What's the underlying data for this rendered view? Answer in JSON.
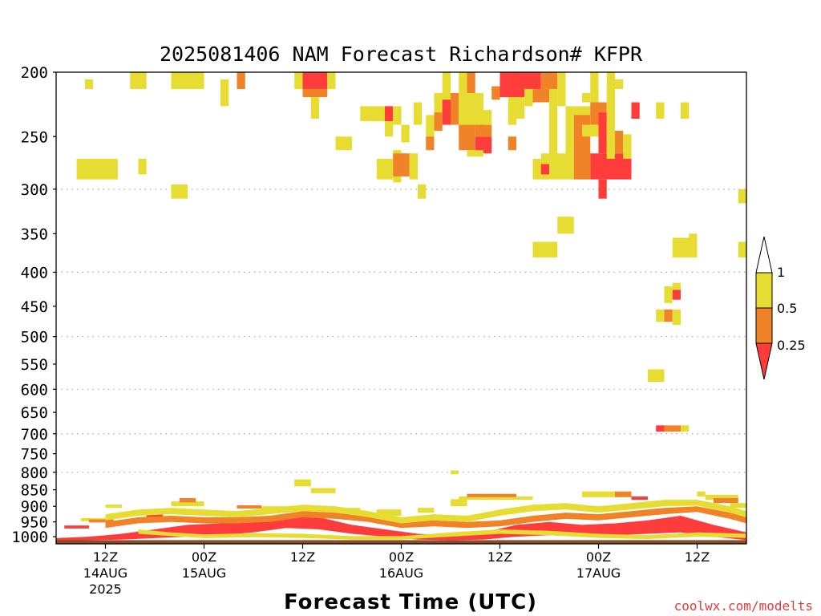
{
  "chart_data": {
    "type": "heatmap",
    "title": "2025081406 NAM Forecast Richardson# KFPR",
    "xlabel": "Forecast Time (UTC)",
    "ylabel": "",
    "credit": "coolwx.com/modelts",
    "x_ticks": [
      {
        "hour": 6,
        "lines": [
          "12Z",
          "14AUG",
          "2025"
        ]
      },
      {
        "hour": 18,
        "lines": [
          "00Z",
          "15AUG"
        ]
      },
      {
        "hour": 30,
        "lines": [
          "12Z"
        ]
      },
      {
        "hour": 42,
        "lines": [
          "00Z",
          "16AUG"
        ]
      },
      {
        "hour": 54,
        "lines": [
          "12Z"
        ]
      },
      {
        "hour": 66,
        "lines": [
          "00Z",
          "17AUG"
        ]
      },
      {
        "hour": 78,
        "lines": [
          "12Z"
        ]
      }
    ],
    "xlim": [
      0,
      84
    ],
    "ylim": [
      1025,
      200
    ],
    "y_scale": "log",
    "y_ticks": [
      200,
      250,
      300,
      350,
      400,
      450,
      500,
      550,
      600,
      650,
      700,
      750,
      800,
      850,
      900,
      950,
      1000
    ],
    "gridlines_hpa": [
      300,
      400,
      500,
      600,
      700,
      800
    ],
    "surface_hpa": 1012,
    "colorbar": {
      "labels": [
        "1",
        "0.5",
        "0.25"
      ],
      "bins": [
        {
          "range": "<0.25",
          "color": "#ff3c3c"
        },
        {
          "range": "0.25-0.5",
          "color": "#f08228"
        },
        {
          "range": "0.5-1",
          "color": "#e6dc32"
        },
        {
          "range": ">1",
          "color": "#ffffff"
        }
      ]
    },
    "colors": {
      "red": "#ff3c3c",
      "orange": "#f08228",
      "yellow": "#e6dc32",
      "surface": "#8c4a28",
      "grid": "#aaaaaa"
    },
    "cells": [
      [
        "y",
        3.5,
        4.5,
        205,
        212
      ],
      [
        "y",
        9,
        11,
        200,
        212
      ],
      [
        "y",
        14,
        18,
        200,
        212
      ],
      [
        "y",
        20,
        21,
        205,
        225
      ],
      [
        "o",
        22,
        23,
        200,
        212
      ],
      [
        "y",
        29,
        30,
        200,
        212
      ],
      [
        "r",
        30,
        33,
        200,
        212
      ],
      [
        "y",
        33,
        34,
        200,
        212
      ],
      [
        "o",
        30,
        33,
        212,
        218
      ],
      [
        "y",
        31,
        32,
        218,
        235
      ],
      [
        "y",
        2.5,
        7.5,
        270,
        290
      ],
      [
        "y",
        10,
        11,
        270,
        285
      ],
      [
        "y",
        14,
        16,
        295,
        310
      ],
      [
        "y",
        34,
        36,
        250,
        262
      ],
      [
        "y",
        37,
        40,
        225,
        237
      ],
      [
        "r",
        40,
        41,
        225,
        237
      ],
      [
        "y",
        41,
        42,
        225,
        240
      ],
      [
        "y",
        40,
        41,
        237,
        250
      ],
      [
        "y",
        42,
        43,
        240,
        255
      ],
      [
        "y",
        41,
        42,
        262,
        280
      ],
      [
        "y",
        39,
        41,
        270,
        290
      ],
      [
        "o",
        41,
        43,
        265,
        287
      ],
      [
        "y",
        43,
        44,
        265,
        290
      ],
      [
        "y",
        41,
        42,
        287,
        293
      ],
      [
        "y",
        44,
        45,
        295,
        310
      ],
      [
        "y",
        43.5,
        44.5,
        222,
        240
      ],
      [
        "y",
        45,
        46,
        232,
        250
      ],
      [
        "o",
        45,
        46,
        250,
        262
      ],
      [
        "o",
        46,
        47,
        222,
        245
      ],
      [
        "y",
        47,
        48,
        200,
        220
      ],
      [
        "y",
        46,
        48,
        215,
        230
      ],
      [
        "r",
        47,
        48,
        220,
        240
      ],
      [
        "o",
        48,
        49,
        215,
        240
      ],
      [
        "y",
        49,
        50,
        200,
        245
      ],
      [
        "o",
        50,
        51,
        200,
        215
      ],
      [
        "y",
        50,
        52,
        215,
        245
      ],
      [
        "o",
        49,
        51,
        240,
        262
      ],
      [
        "r",
        51,
        53,
        250,
        265
      ],
      [
        "o",
        51,
        53,
        240,
        250
      ],
      [
        "y",
        50,
        52,
        262,
        268
      ],
      [
        "y",
        52,
        53,
        228,
        240
      ],
      [
        "o",
        53,
        54,
        210,
        220
      ],
      [
        "r",
        54,
        56,
        200,
        215
      ],
      [
        "r",
        56,
        59,
        200,
        212
      ],
      [
        "o",
        59,
        61,
        200,
        212
      ],
      [
        "y",
        61,
        62,
        200,
        225
      ],
      [
        "r",
        54,
        57,
        212,
        218
      ],
      [
        "y",
        55,
        56,
        218,
        240
      ],
      [
        "o",
        55,
        56,
        250,
        262
      ],
      [
        "y",
        56,
        57,
        218,
        235
      ],
      [
        "y",
        57,
        58,
        212,
        225
      ],
      [
        "o",
        58,
        60,
        212,
        222
      ],
      [
        "y",
        60,
        61,
        212,
        235
      ],
      [
        "y",
        60,
        61,
        235,
        270
      ],
      [
        "y",
        58,
        59,
        270,
        290
      ],
      [
        "y",
        59,
        60,
        265,
        290
      ],
      [
        "r",
        59,
        60,
        275,
        285
      ],
      [
        "y",
        60,
        62,
        265,
        290
      ],
      [
        "y",
        62,
        63,
        225,
        290
      ],
      [
        "o",
        63,
        65,
        230,
        290
      ],
      [
        "y",
        63,
        65,
        225,
        232
      ],
      [
        "y",
        65,
        66,
        200,
        222
      ],
      [
        "y",
        64,
        65,
        215,
        222
      ],
      [
        "o",
        65,
        67,
        222,
        240
      ],
      [
        "y",
        64,
        67,
        240,
        250
      ],
      [
        "r",
        66,
        67,
        230,
        265
      ],
      [
        "r",
        65,
        70,
        265,
        290
      ],
      [
        "r",
        66,
        67,
        290,
        310
      ],
      [
        "o",
        67,
        69,
        245,
        265
      ],
      [
        "y",
        67,
        68,
        212,
        270
      ],
      [
        "y",
        67,
        68,
        200,
        215
      ],
      [
        "y",
        68,
        69,
        205,
        212
      ],
      [
        "y",
        69,
        70,
        248,
        270
      ],
      [
        "r",
        70,
        71,
        222,
        235
      ],
      [
        "y",
        73,
        74,
        222,
        235
      ],
      [
        "y",
        76,
        77,
        222,
        235
      ],
      [
        "y",
        61,
        63,
        330,
        350
      ],
      [
        "y",
        58,
        61,
        360,
        380
      ],
      [
        "y",
        75,
        78,
        355,
        380
      ],
      [
        "y",
        77,
        78,
        350,
        360
      ],
      [
        "y",
        83,
        84,
        300,
        315
      ],
      [
        "y",
        83,
        84,
        360,
        380
      ],
      [
        "y",
        74,
        75,
        420,
        445
      ],
      [
        "r",
        75,
        76,
        425,
        440
      ],
      [
        "y",
        75,
        76,
        415,
        425
      ],
      [
        "y",
        73,
        74,
        455,
        475
      ],
      [
        "o",
        74,
        75,
        455,
        475
      ],
      [
        "y",
        75,
        76,
        455,
        480
      ],
      [
        "y",
        72,
        74,
        560,
        585
      ],
      [
        "r",
        73,
        74,
        680,
        695
      ],
      [
        "o",
        74,
        76,
        680,
        695
      ],
      [
        "y",
        76,
        77,
        680,
        695
      ],
      [
        "y",
        48,
        49,
        795,
        805
      ],
      [
        "y",
        64,
        68,
        855,
        872
      ],
      [
        "o",
        68,
        70,
        855,
        872
      ],
      [
        "r",
        70,
        72,
        870,
        880
      ],
      [
        "y",
        49,
        58,
        870,
        880
      ],
      [
        "o",
        50,
        56,
        862,
        872
      ],
      [
        "y",
        48,
        50,
        878,
        900
      ],
      [
        "y",
        29,
        31,
        820,
        840
      ],
      [
        "y",
        31,
        34,
        845,
        860
      ],
      [
        "y",
        39,
        42,
        910,
        930
      ],
      [
        "y",
        44,
        46,
        905,
        920
      ],
      [
        "y",
        78,
        79,
        855,
        870
      ],
      [
        "y",
        79,
        83,
        865,
        880
      ],
      [
        "o",
        80,
        83,
        875,
        890
      ],
      [
        "y",
        82,
        84,
        890,
        905
      ],
      [
        "y",
        14,
        18,
        885,
        900
      ],
      [
        "o",
        15,
        17,
        875,
        888
      ],
      [
        "r",
        11,
        13,
        920,
        935
      ],
      [
        "y",
        3,
        6,
        938,
        948
      ],
      [
        "o",
        4,
        7,
        942,
        952
      ],
      [
        "r",
        1,
        4,
        962,
        972
      ],
      [
        "o",
        22,
        25,
        897,
        907
      ],
      [
        "y",
        25,
        28,
        900,
        910
      ],
      [
        "y",
        31,
        34,
        900,
        915
      ],
      [
        "y",
        35,
        37,
        905,
        915
      ],
      [
        "y",
        6,
        8,
        895,
        905
      ]
    ],
    "bands": [
      {
        "c": "r",
        "pts": [
          [
            0,
            1005,
            1015
          ],
          [
            4,
            1000,
            1012
          ],
          [
            8,
            990,
            1010
          ],
          [
            12,
            975,
            1005
          ],
          [
            16,
            960,
            1000
          ],
          [
            20,
            955,
            995
          ],
          [
            24,
            945,
            985
          ],
          [
            28,
            925,
            970
          ],
          [
            32,
            935,
            975
          ],
          [
            36,
            960,
            990
          ],
          [
            40,
            975,
            1000
          ],
          [
            44,
            990,
            1010
          ],
          [
            48,
            995,
            1012
          ],
          [
            52,
            985,
            1010
          ],
          [
            56,
            960,
            1000
          ],
          [
            60,
            950,
            995
          ],
          [
            64,
            960,
            1000
          ],
          [
            68,
            955,
            995
          ],
          [
            72,
            945,
            990
          ],
          [
            76,
            930,
            985
          ],
          [
            80,
            960,
            1000
          ],
          [
            84,
            985,
            1012
          ]
        ]
      },
      {
        "c": "o",
        "pts": [
          [
            6,
            950,
            970
          ],
          [
            10,
            935,
            955
          ],
          [
            14,
            930,
            950
          ],
          [
            18,
            935,
            955
          ],
          [
            22,
            935,
            955
          ],
          [
            26,
            930,
            950
          ],
          [
            30,
            915,
            935
          ],
          [
            34,
            920,
            940
          ],
          [
            38,
            930,
            950
          ],
          [
            42,
            950,
            970
          ],
          [
            46,
            945,
            965
          ],
          [
            50,
            950,
            970
          ],
          [
            54,
            945,
            965
          ],
          [
            58,
            930,
            950
          ],
          [
            62,
            920,
            940
          ],
          [
            66,
            925,
            945
          ],
          [
            70,
            915,
            935
          ],
          [
            74,
            905,
            925
          ],
          [
            78,
            900,
            918
          ],
          [
            82,
            920,
            940
          ],
          [
            84,
            935,
            955
          ]
        ]
      },
      {
        "c": "y",
        "pts": [
          [
            6,
            925,
            945
          ],
          [
            10,
            910,
            930
          ],
          [
            14,
            905,
            925
          ],
          [
            18,
            910,
            930
          ],
          [
            22,
            915,
            935
          ],
          [
            26,
            905,
            925
          ],
          [
            30,
            895,
            915
          ],
          [
            34,
            900,
            920
          ],
          [
            38,
            915,
            935
          ],
          [
            42,
            935,
            955
          ],
          [
            46,
            925,
            945
          ],
          [
            50,
            930,
            950
          ],
          [
            54,
            910,
            930
          ],
          [
            58,
            895,
            915
          ],
          [
            62,
            890,
            910
          ],
          [
            66,
            900,
            920
          ],
          [
            70,
            890,
            910
          ],
          [
            74,
            880,
            900
          ],
          [
            78,
            880,
            898
          ],
          [
            82,
            900,
            920
          ],
          [
            84,
            915,
            935
          ]
        ]
      },
      {
        "c": "y",
        "pts": [
          [
            10,
            975,
            990
          ],
          [
            14,
            985,
            998
          ],
          [
            18,
            992,
            1005
          ],
          [
            24,
            988,
            1002
          ],
          [
            30,
            990,
            1004
          ],
          [
            36,
            998,
            1010
          ],
          [
            42,
            998,
            1010
          ],
          [
            48,
            985,
            1000
          ],
          [
            54,
            975,
            990
          ],
          [
            60,
            980,
            995
          ],
          [
            66,
            990,
            1004
          ],
          [
            72,
            995,
            1008
          ],
          [
            78,
            985,
            1000
          ],
          [
            84,
            990,
            1004
          ]
        ]
      }
    ]
  }
}
